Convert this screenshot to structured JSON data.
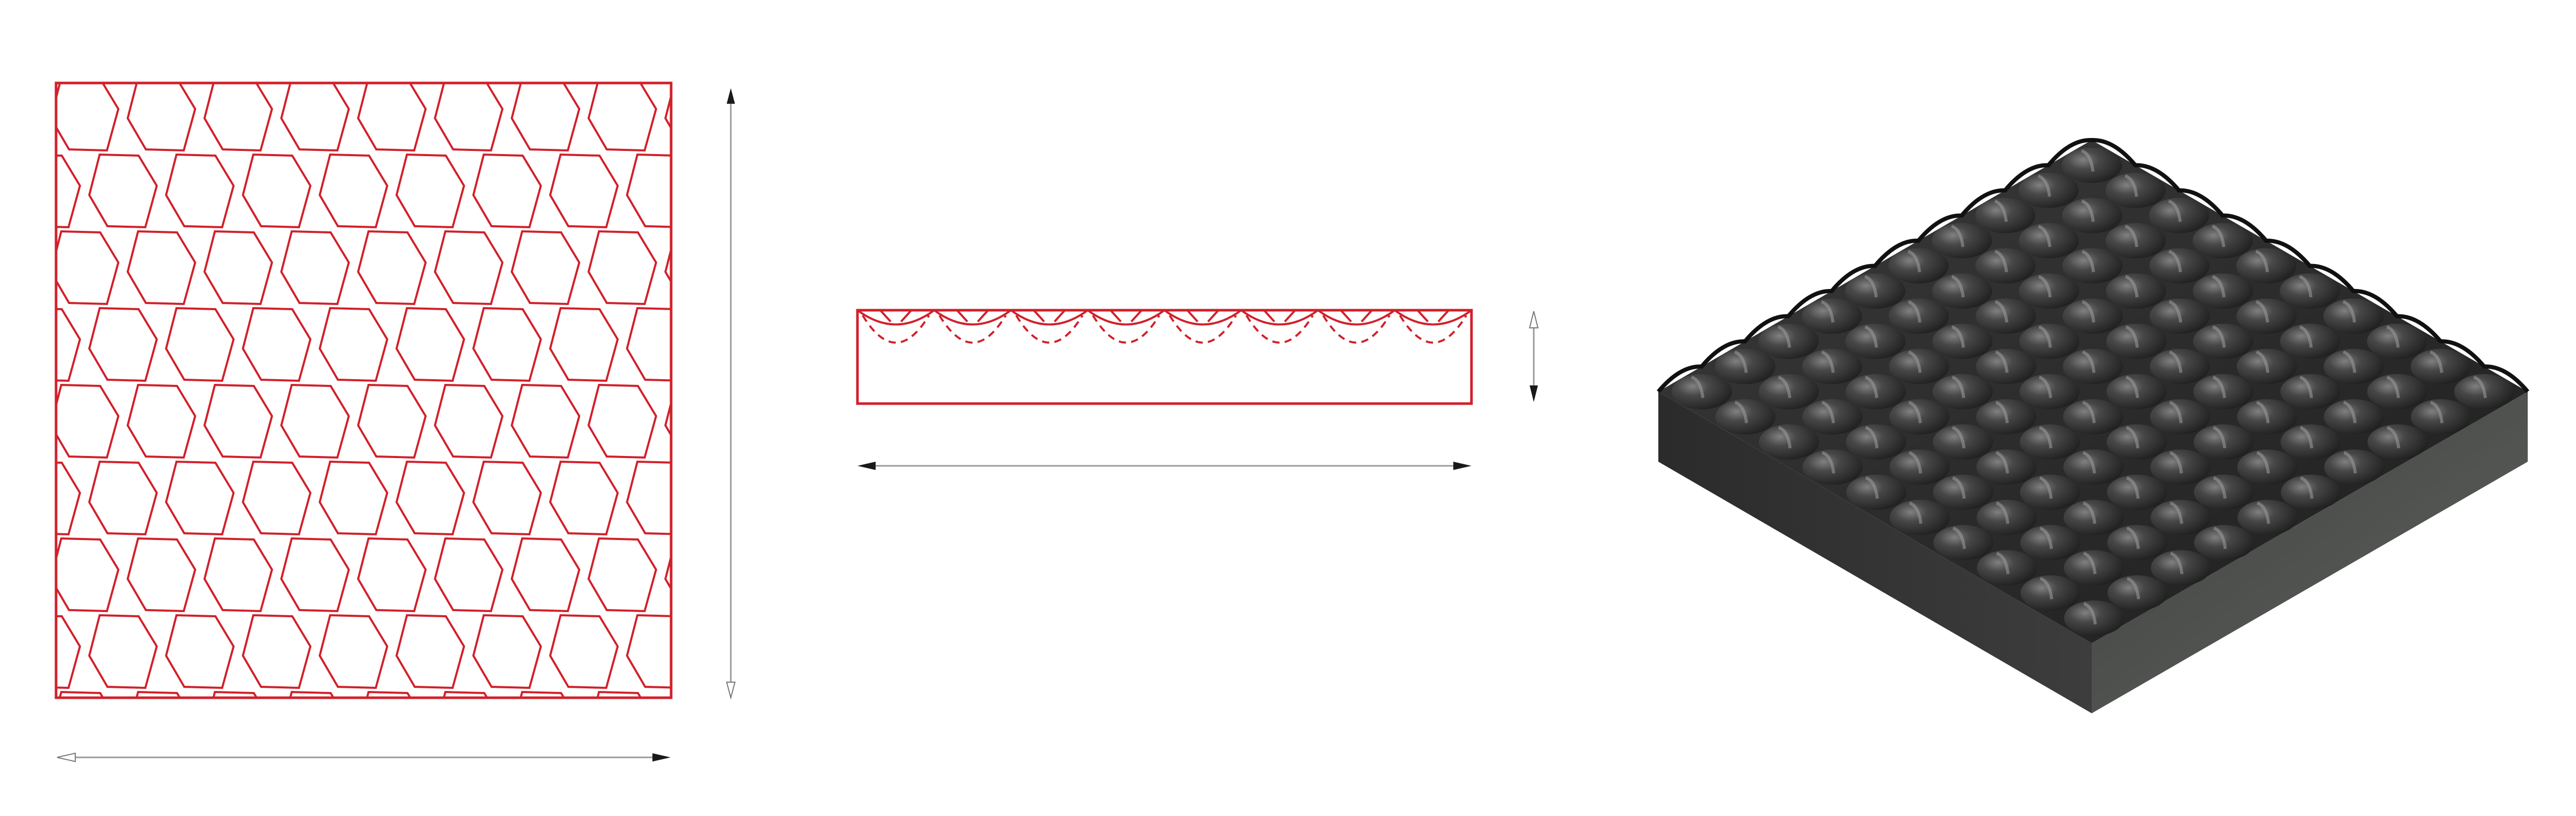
{
  "drawing": {
    "views": [
      {
        "name": "plan-view",
        "pattern": "hexagonal-cell-grid"
      },
      {
        "name": "section-view",
        "pattern": "scalloped-profile"
      },
      {
        "name": "isometric-view",
        "pattern": "rendered-3d-panel"
      }
    ],
    "colors": {
      "line": "#d1202a",
      "dimension": "#9a9a9a",
      "arrow_fill": "#1a1a1a",
      "panel_dark": "#2a2a2a",
      "panel_side": "#4a4c4a"
    }
  }
}
